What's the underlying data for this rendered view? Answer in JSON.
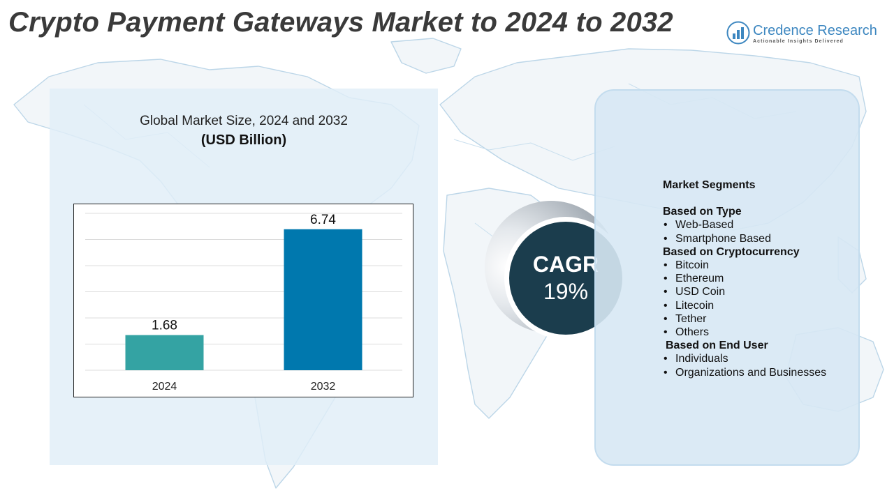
{
  "title": "Crypto Payment Gateways Market to 2024 to 2032",
  "brand": {
    "name": "Credence Research",
    "tagline": "Actionable Insights Delivered",
    "icon": "bar-chart-logo-icon",
    "color": "#3d87c0"
  },
  "chart_data": {
    "type": "bar",
    "title": "Global Market Size, 2024 and 2032",
    "subtitle": "(USD Billion)",
    "categories": [
      "2024",
      "2032"
    ],
    "values": [
      1.68,
      6.74
    ],
    "data_labels": [
      "1.68",
      "6.74"
    ],
    "bar_colors": [
      "#34a3a3",
      "#0078ae"
    ],
    "ylim": [
      0,
      7.5
    ],
    "grid": true,
    "legend": "none"
  },
  "cagr": {
    "label": "CAGR",
    "value": "19%"
  },
  "segments": {
    "heading": "Market Segments",
    "groups": [
      {
        "label": "Based on Type",
        "items": [
          "Web-Based",
          "Smartphone Based"
        ]
      },
      {
        "label": "Based on Cryptocurrency",
        "items": [
          "Bitcoin",
          "Ethereum",
          "USD Coin",
          "Litecoin",
          "Tether",
          "Others"
        ]
      },
      {
        "label": "Based on End User",
        "items": [
          "Individuals",
          "Organizations and Businesses"
        ]
      }
    ]
  },
  "colors": {
    "panel_bg": "#e1eef8",
    "cagr_circle": "#1b3d4d",
    "map_stroke": "#bcd6e8"
  }
}
